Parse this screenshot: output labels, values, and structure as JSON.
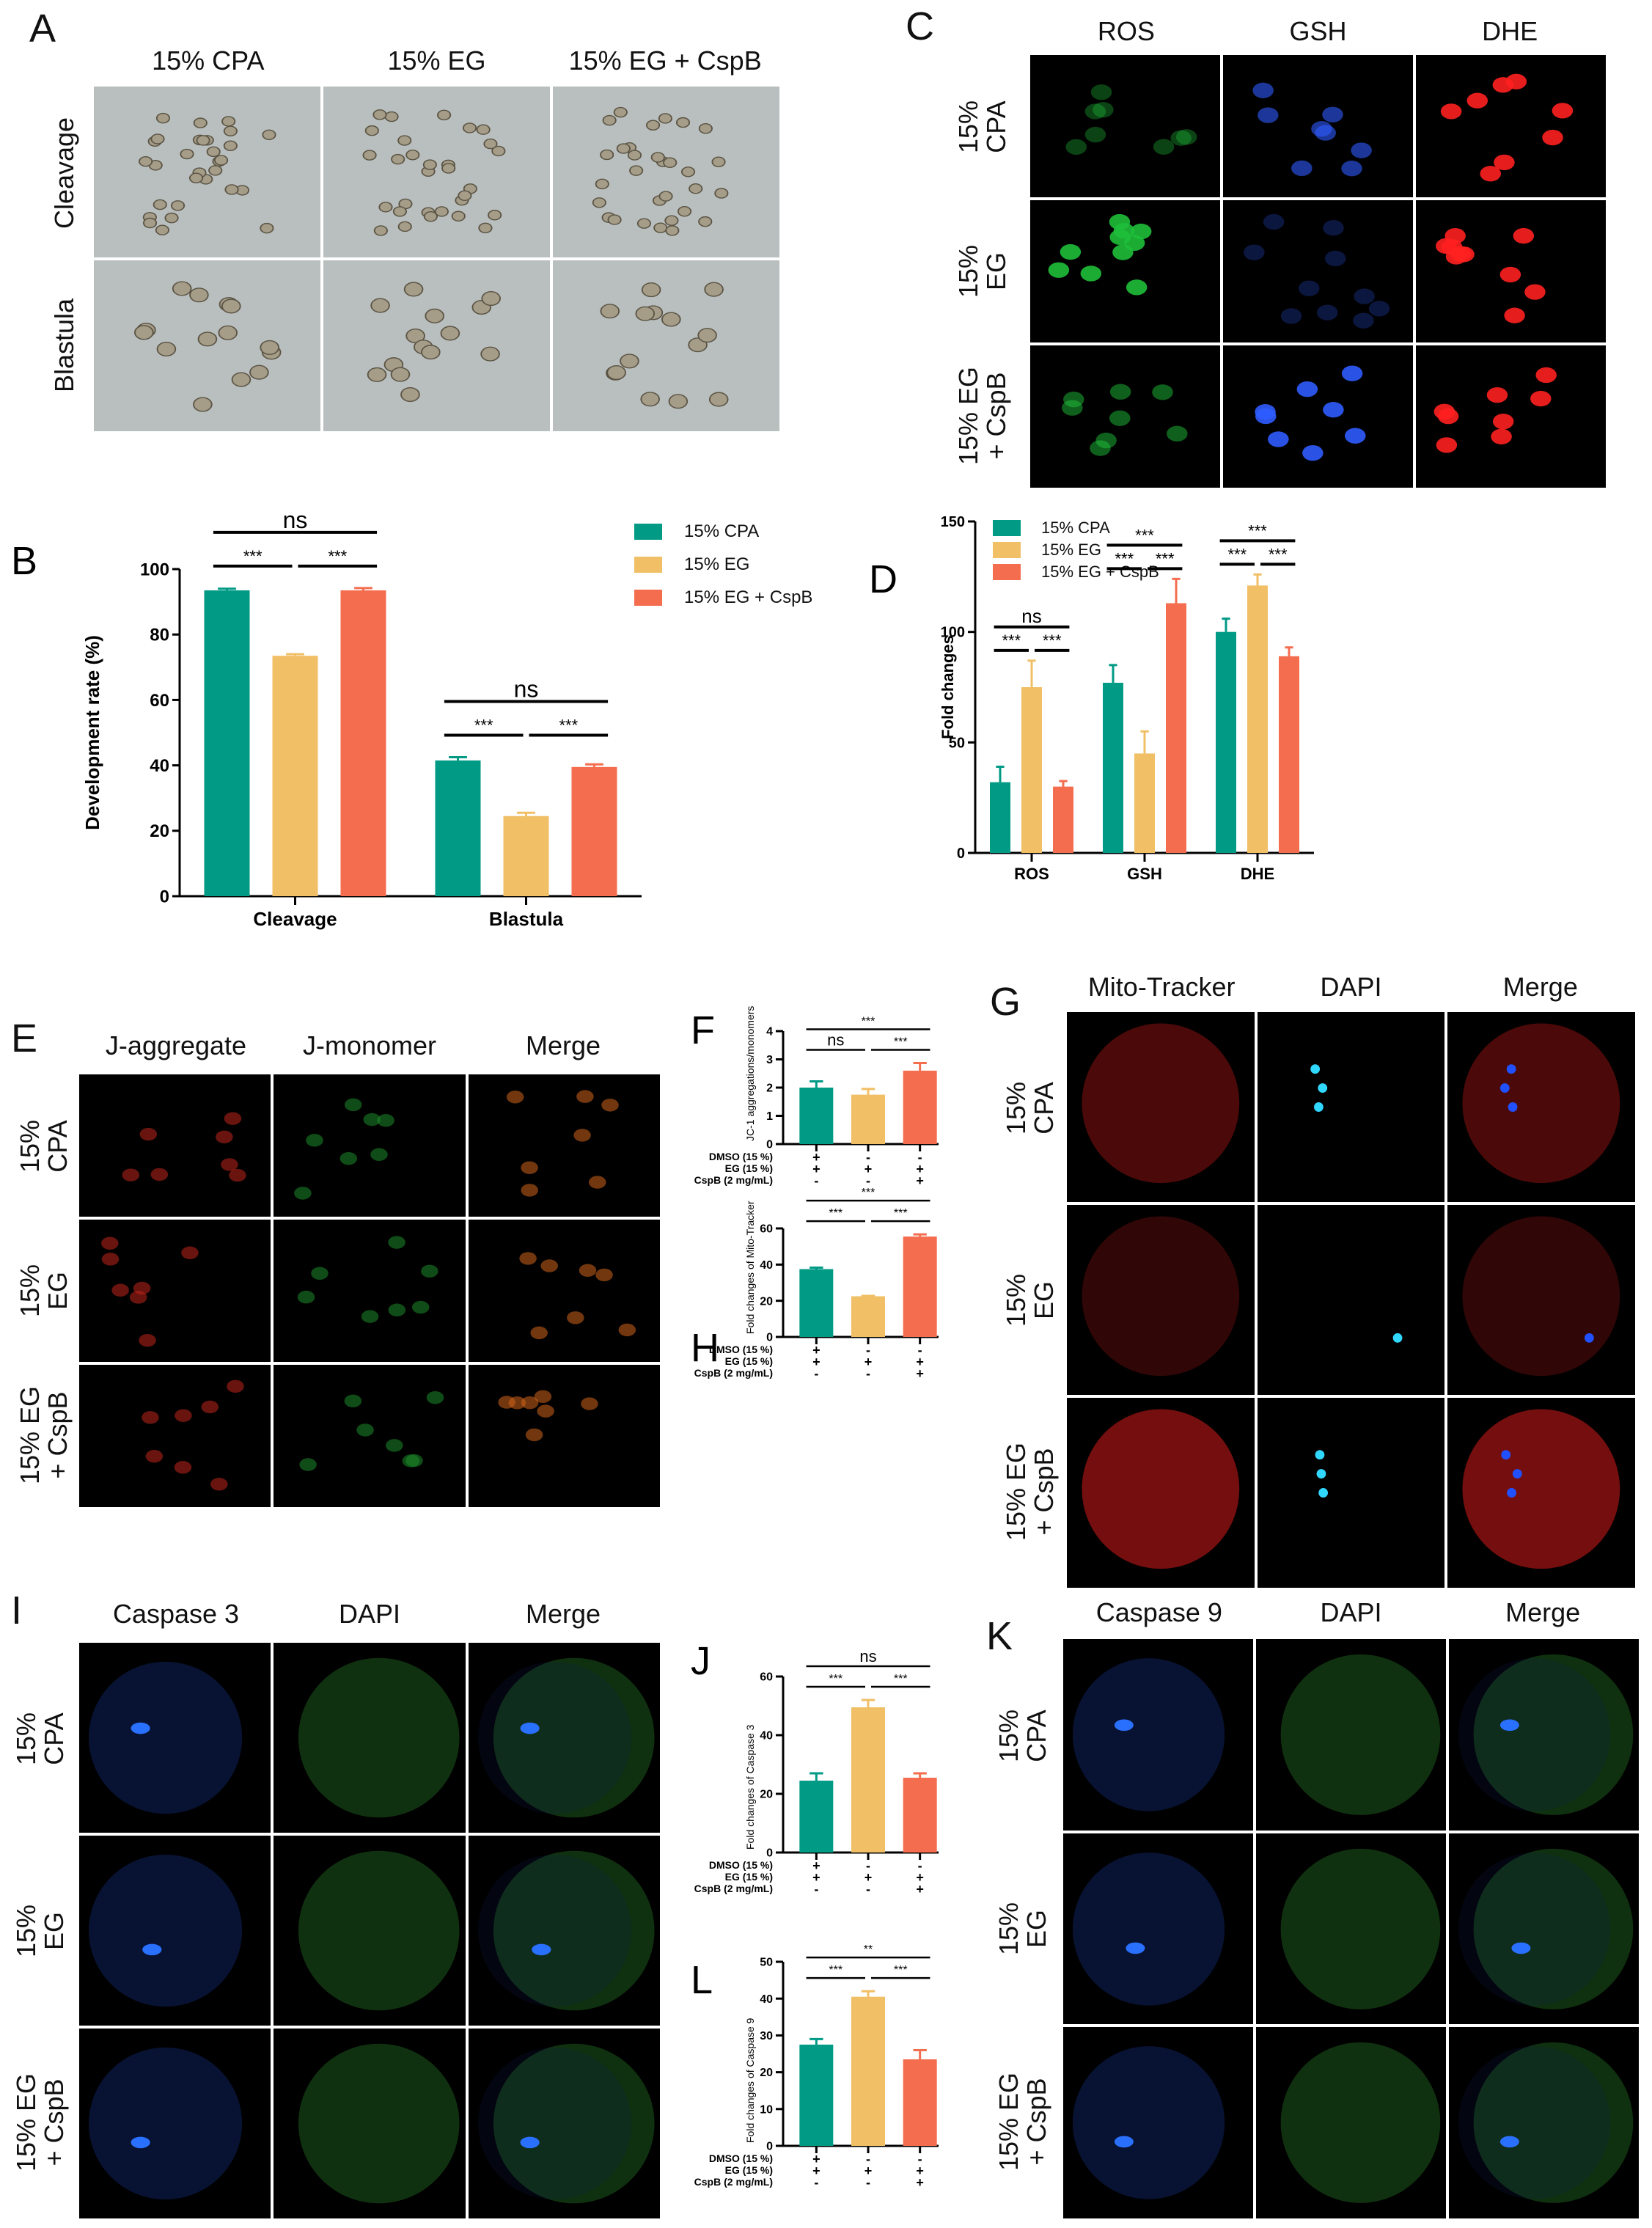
{
  "colors": {
    "cpa": "#009a85",
    "eg": "#f0bf66",
    "egcspb": "#f46d4f"
  },
  "legend": [
    "15% CPA",
    "15% EG",
    "15% EG + CspB"
  ],
  "panel_A": {
    "letter": "A",
    "columns": [
      "15% CPA",
      "15% EG",
      "15% EG + CspB"
    ],
    "rows": [
      "Cleavage",
      "Blastula"
    ]
  },
  "panel_C": {
    "letter": "C",
    "columns": [
      "ROS",
      "GSH",
      "DHE"
    ],
    "rows": [
      "15%\nCPA",
      "15%\nEG",
      "15% EG\n+ CspB"
    ]
  },
  "panel_E": {
    "letter": "E",
    "columns": [
      "J-aggregate",
      "J-monomer",
      "Merge"
    ],
    "rows": [
      "15%\nCPA",
      "15%\nEG",
      "15% EG\n+ CspB"
    ]
  },
  "panel_G": {
    "letter": "G",
    "columns": [
      "Mito-Tracker",
      "DAPI",
      "Merge"
    ],
    "rows": [
      "15%\nCPA",
      "15%\nEG",
      "15% EG\n+ CspB"
    ]
  },
  "panel_I": {
    "letter": "I",
    "columns": [
      "Caspase 3",
      "DAPI",
      "Merge"
    ],
    "rows": [
      "15%\nCPA",
      "15%\nEG",
      "15% EG\n+ CspB"
    ]
  },
  "panel_K": {
    "letter": "K",
    "columns": [
      "Caspase 9",
      "DAPI",
      "Merge"
    ],
    "rows": [
      "15%\nCPA",
      "15%\nEG",
      "15% EG\n+ CspB"
    ]
  },
  "condition_labels": [
    "DMSO (15 %)",
    "EG (15 %)",
    "CspB (2 mg/mL)"
  ],
  "conditions": [
    [
      "+",
      "-",
      "-"
    ],
    [
      "+",
      "+",
      "+"
    ],
    [
      "-",
      "-",
      "+"
    ]
  ],
  "chart_data": [
    {
      "id": "B",
      "letter": "B",
      "type": "bar",
      "categories": [
        "Cleavage",
        "Blastula"
      ],
      "ylabel": "Development rate (%)",
      "ylim": [
        0,
        100
      ],
      "yticks": [
        0,
        20,
        40,
        60,
        80,
        100
      ],
      "legend": "top-right",
      "series": [
        {
          "name": "15% CPA",
          "values": [
            93.5,
            41.5
          ],
          "errors": [
            0.5,
            1.0
          ]
        },
        {
          "name": "15% EG",
          "values": [
            73.5,
            24.5
          ],
          "errors": [
            0.5,
            1.0
          ]
        },
        {
          "name": "15% EG + CspB",
          "values": [
            93.5,
            39.5
          ],
          "errors": [
            0.7,
            0.8
          ]
        }
      ],
      "significance": [
        [
          {
            "pair": [
              0,
              1
            ],
            "label": "***"
          },
          {
            "pair": [
              1,
              2
            ],
            "label": "***"
          },
          {
            "pair": [
              0,
              2
            ],
            "label": "ns"
          }
        ],
        [
          {
            "pair": [
              0,
              1
            ],
            "label": "***"
          },
          {
            "pair": [
              1,
              2
            ],
            "label": "***"
          },
          {
            "pair": [
              0,
              2
            ],
            "label": "ns"
          }
        ]
      ]
    },
    {
      "id": "D",
      "letter": "D",
      "type": "bar",
      "categories": [
        "ROS",
        "GSH",
        "DHE"
      ],
      "ylabel": "Fold changes",
      "ylim": [
        0,
        150
      ],
      "yticks": [
        0,
        50,
        100,
        150
      ],
      "legend": "top-left",
      "series": [
        {
          "name": "15% CPA",
          "values": [
            32,
            77,
            100
          ],
          "errors": [
            7,
            8,
            6
          ]
        },
        {
          "name": "15% EG",
          "values": [
            75,
            45,
            121
          ],
          "errors": [
            12,
            10,
            5
          ]
        },
        {
          "name": "15% EG + CspB",
          "values": [
            30,
            113,
            89
          ],
          "errors": [
            2.5,
            11,
            4
          ]
        }
      ],
      "significance": [
        [
          {
            "pair": [
              0,
              1
            ],
            "label": "***"
          },
          {
            "pair": [
              1,
              2
            ],
            "label": "***"
          },
          {
            "pair": [
              0,
              2
            ],
            "label": "ns"
          }
        ],
        [
          {
            "pair": [
              0,
              1
            ],
            "label": "***"
          },
          {
            "pair": [
              1,
              2
            ],
            "label": "***"
          },
          {
            "pair": [
              0,
              2
            ],
            "label": "***"
          }
        ],
        [
          {
            "pair": [
              0,
              1
            ],
            "label": "***"
          },
          {
            "pair": [
              1,
              2
            ],
            "label": "***"
          },
          {
            "pair": [
              0,
              2
            ],
            "label": "***"
          }
        ]
      ]
    },
    {
      "id": "F",
      "letter": "F",
      "type": "bar",
      "ylabel": "JC-1 aggregations/monomers",
      "ylim": [
        0,
        4
      ],
      "yticks": [
        0,
        1,
        2,
        3,
        4
      ],
      "values": [
        2.0,
        1.75,
        2.6
      ],
      "errors": [
        0.22,
        0.2,
        0.27
      ],
      "significance": [
        {
          "pair": [
            0,
            1
          ],
          "label": "ns"
        },
        {
          "pair": [
            1,
            2
          ],
          "label": "***"
        },
        {
          "pair": [
            0,
            2
          ],
          "label": "***"
        }
      ]
    },
    {
      "id": "H",
      "letter": "H",
      "type": "bar",
      "ylabel": "Fold changes of Mito-Tracker",
      "ylim": [
        0,
        60
      ],
      "yticks": [
        0,
        20,
        40,
        60
      ],
      "values": [
        37.5,
        22.5,
        55.5
      ],
      "errors": [
        0.8,
        0.2,
        1.2
      ],
      "significance": [
        {
          "pair": [
            0,
            1
          ],
          "label": "***"
        },
        {
          "pair": [
            1,
            2
          ],
          "label": "***"
        },
        {
          "pair": [
            0,
            2
          ],
          "label": "***"
        }
      ]
    },
    {
      "id": "J",
      "letter": "J",
      "type": "bar",
      "ylabel": "Fold changes of Caspase 3",
      "ylim": [
        0,
        60
      ],
      "yticks": [
        0,
        20,
        40,
        60
      ],
      "values": [
        24.5,
        49.5,
        25.5
      ],
      "errors": [
        2.5,
        2.5,
        1.5
      ],
      "significance": [
        {
          "pair": [
            0,
            1
          ],
          "label": "***"
        },
        {
          "pair": [
            1,
            2
          ],
          "label": "***"
        },
        {
          "pair": [
            0,
            2
          ],
          "label": "ns"
        }
      ]
    },
    {
      "id": "L",
      "letter": "L",
      "type": "bar",
      "ylabel": "Fold changes of Caspase 9",
      "ylim": [
        0,
        50
      ],
      "yticks": [
        0,
        10,
        20,
        30,
        40,
        50
      ],
      "values": [
        27.5,
        40.5,
        23.5
      ],
      "errors": [
        1.5,
        1.5,
        2.5
      ],
      "significance": [
        {
          "pair": [
            0,
            1
          ],
          "label": "***"
        },
        {
          "pair": [
            1,
            2
          ],
          "label": "***"
        },
        {
          "pair": [
            0,
            2
          ],
          "label": "**"
        }
      ]
    }
  ]
}
